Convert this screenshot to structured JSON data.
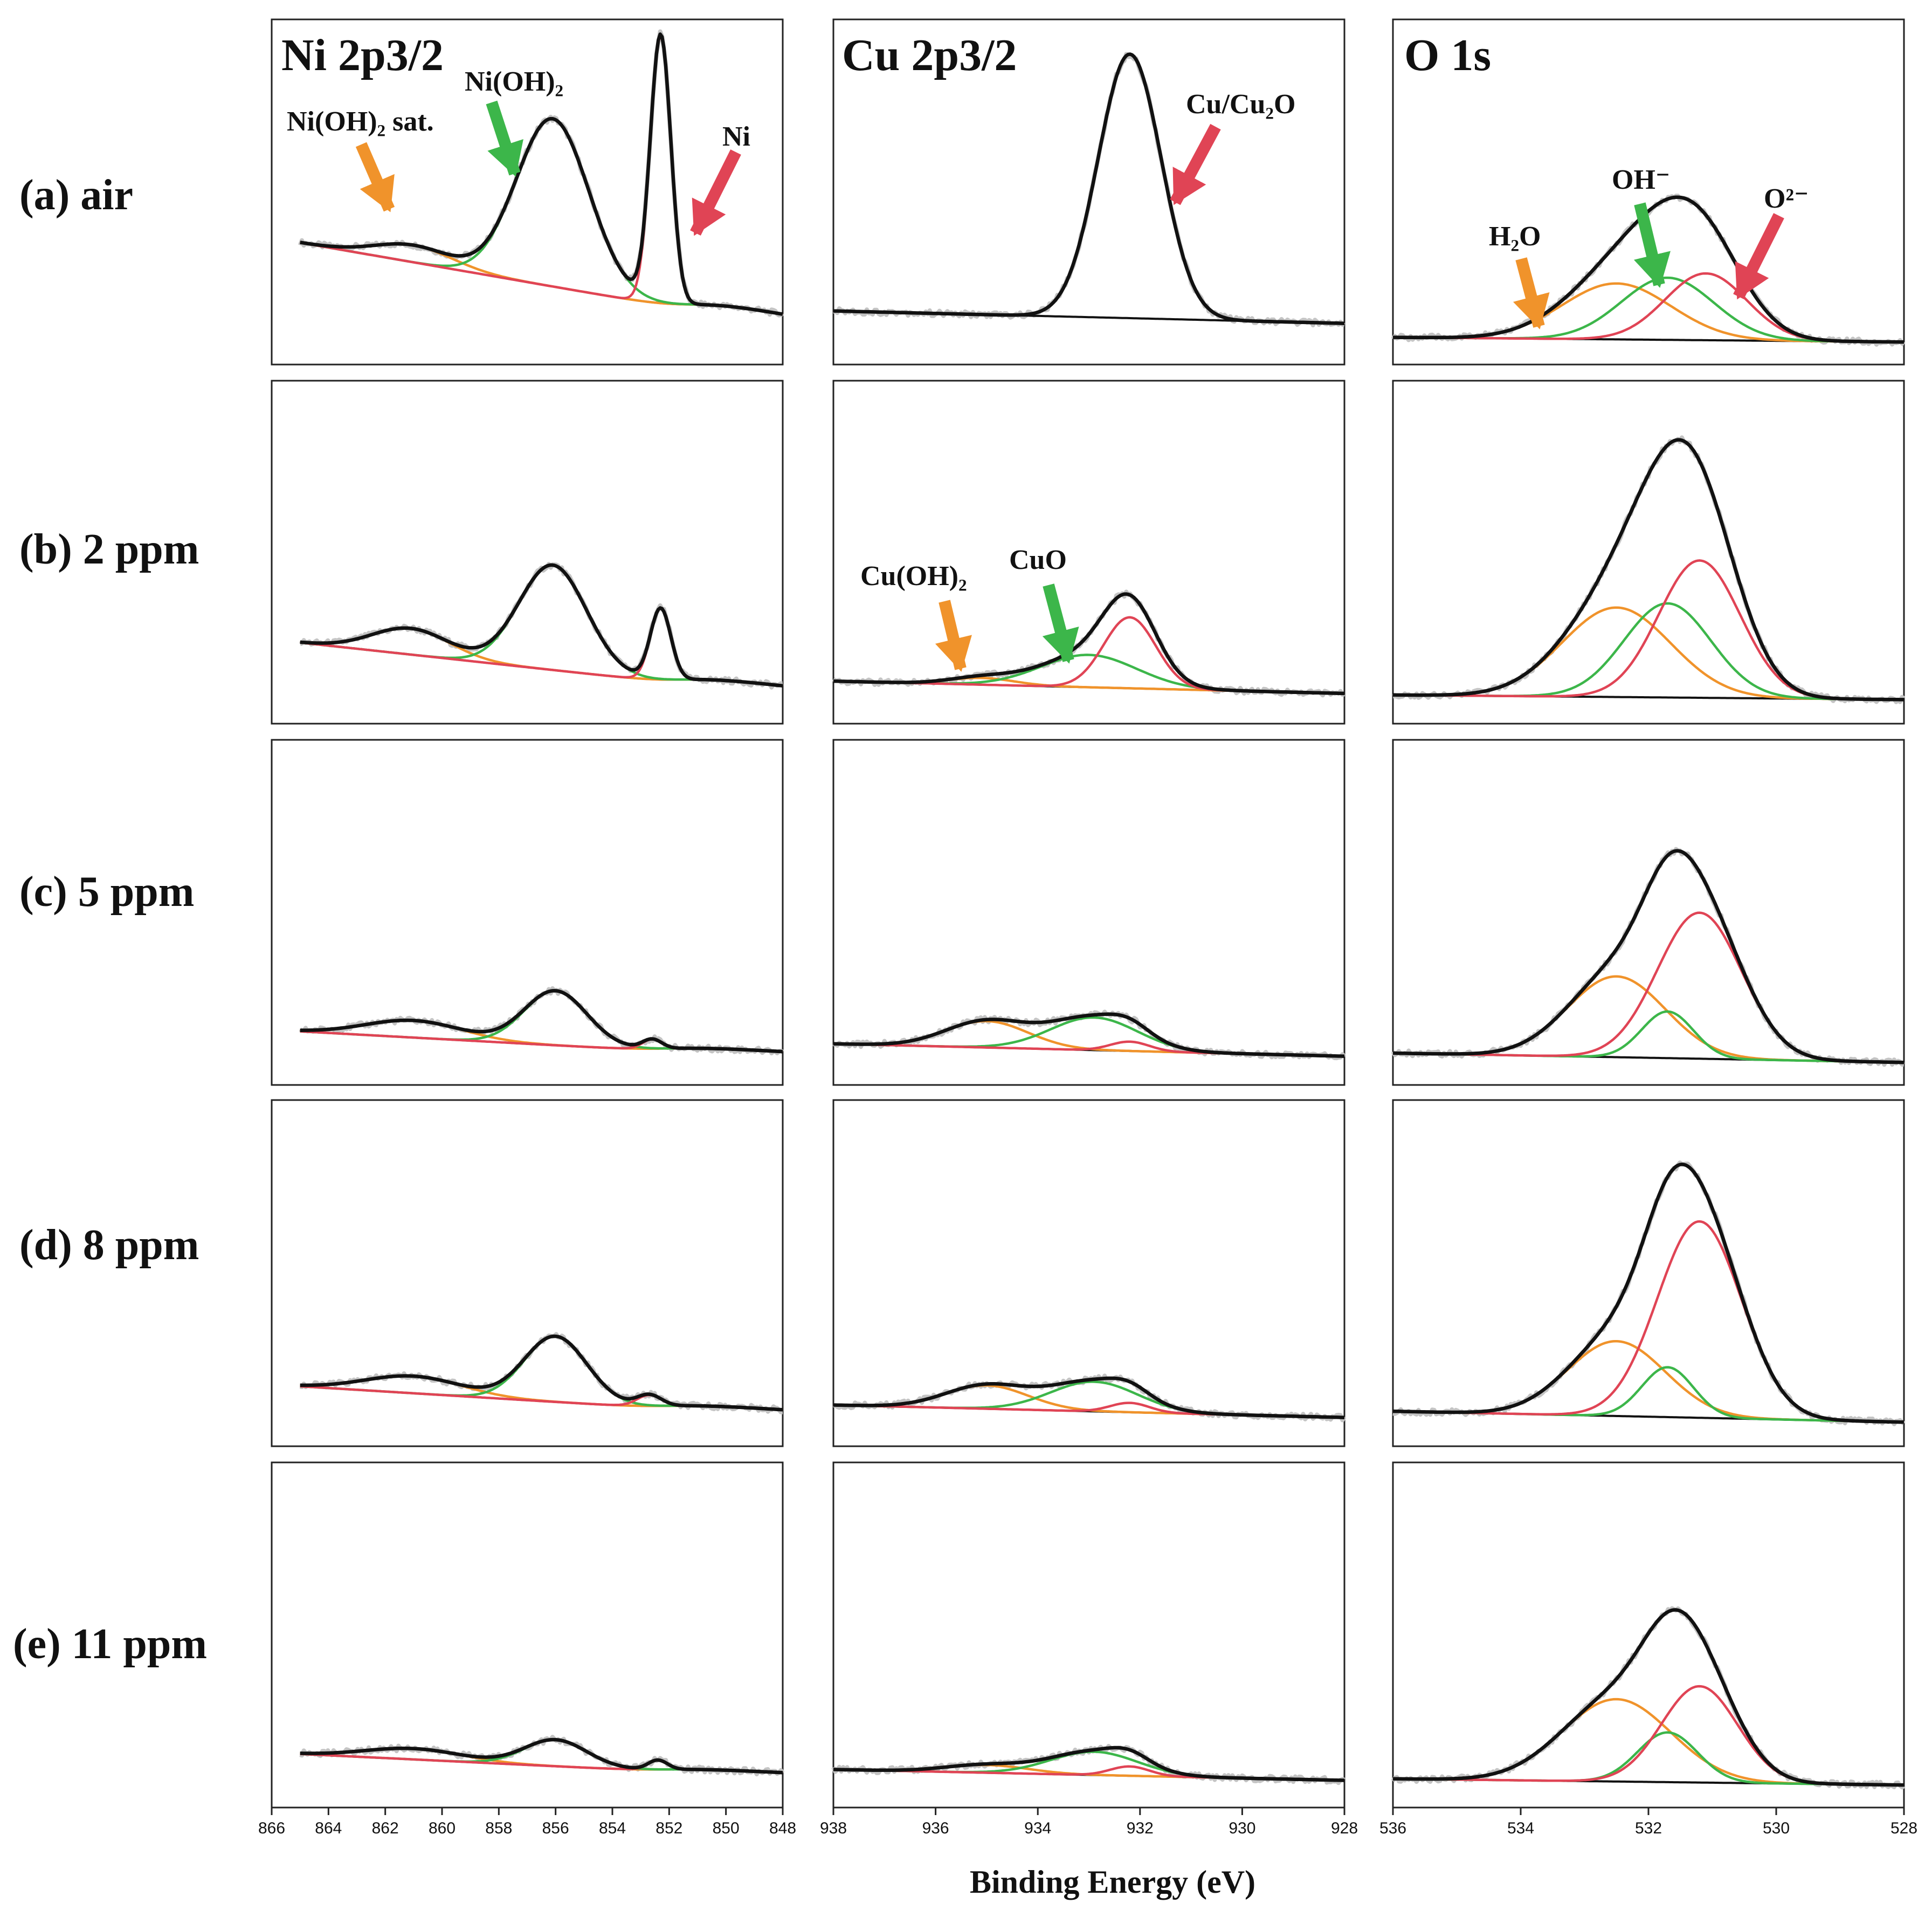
{
  "figure": {
    "xlabel": "Binding Energy (eV)",
    "rows": [
      "(a) air",
      "(b) 2 ppm",
      "(c) 5 ppm",
      "(d) 8 ppm",
      "(e) 11 ppm"
    ],
    "columns": [
      "Ni 2p3/2",
      "Cu 2p3/2",
      "O 1s"
    ]
  },
  "colors": {
    "raw_data": "#c4c4c4",
    "envelope": "#111111",
    "background": "#111111",
    "red": "#e04455",
    "green": "#3cb64a",
    "orange": "#f0932b"
  },
  "annotations": {
    "ni_sat": "Ni(OH)₂ sat.",
    "ni_oh": "Ni(OH)₂",
    "ni_metal": "Ni",
    "cu_cu2o": "Cu/Cu₂O",
    "cu_oh2": "Cu(OH)₂",
    "cu_cuo": "CuO",
    "o_h2o": "H₂O",
    "o_oh": "OH⁻",
    "o_o2": "O²⁻"
  },
  "chart_data": [
    {
      "type": "line",
      "title": "Ni 2p3/2",
      "xlabel": "Binding Energy (eV)",
      "ylabel": "",
      "xlim": [
        866,
        848
      ],
      "xticks": [
        866,
        864,
        862,
        860,
        858,
        856,
        854,
        852,
        850,
        848
      ],
      "x_start": 865,
      "x_end": 848,
      "y_max": 10,
      "peak_colors": [
        "orange",
        "green",
        "red"
      ],
      "rows": [
        {
          "label": "(a) air",
          "bg_start": 3.3,
          "bg_end": 0.6,
          "step_center": 851.2,
          "step_height": 0.4,
          "step_width": 0.7,
          "peaks": [
            {
              "center": 861.0,
              "height": 0.55,
              "fwhm": 3.2
            },
            {
              "center": 856.1,
              "height": 5.4,
              "fwhm": 3.0
            },
            {
              "center": 852.3,
              "height": 8.6,
              "fwhm": 0.85
            }
          ]
        },
        {
          "label": "(b) 2 ppm",
          "bg_start": 2.0,
          "bg_end": 0.3,
          "step_center": 851.5,
          "step_height": 0.3,
          "step_width": 0.7,
          "peaks": [
            {
              "center": 861.1,
              "height": 0.85,
              "fwhm": 3.2
            },
            {
              "center": 856.1,
              "height": 3.4,
              "fwhm": 2.8
            },
            {
              "center": 852.3,
              "height": 2.3,
              "fwhm": 0.85
            }
          ]
        },
        {
          "label": "(c) 5 ppm",
          "bg_start": 1.1,
          "bg_end": 0.25,
          "step_center": 852.0,
          "step_height": 0.2,
          "step_width": 0.8,
          "peaks": [
            {
              "center": 861.0,
              "height": 0.55,
              "fwhm": 4.0
            },
            {
              "center": 856.0,
              "height": 1.75,
              "fwhm": 2.6
            },
            {
              "center": 852.6,
              "height": 0.3,
              "fwhm": 0.8
            }
          ]
        },
        {
          "label": "(d) 8 ppm",
          "bg_start": 1.3,
          "bg_end": 0.35,
          "step_center": 852.0,
          "step_height": 0.2,
          "step_width": 0.8,
          "peaks": [
            {
              "center": 861.0,
              "height": 0.55,
              "fwhm": 4.0
            },
            {
              "center": 856.0,
              "height": 2.1,
              "fwhm": 2.6
            },
            {
              "center": 852.7,
              "height": 0.35,
              "fwhm": 1.0
            }
          ]
        },
        {
          "label": "(e) 11 ppm",
          "bg_start": 1.1,
          "bg_end": 0.35,
          "step_center": 852.0,
          "step_height": 0.15,
          "step_width": 0.8,
          "peaks": [
            {
              "center": 861.0,
              "height": 0.35,
              "fwhm": 4.0
            },
            {
              "center": 856.0,
              "height": 0.85,
              "fwhm": 2.6
            },
            {
              "center": 852.4,
              "height": 0.3,
              "fwhm": 0.8
            }
          ]
        }
      ]
    },
    {
      "type": "line",
      "title": "Cu 2p3/2",
      "xlabel": "Binding Energy (eV)",
      "ylabel": "",
      "xlim": [
        938,
        928
      ],
      "xticks": [
        938,
        936,
        934,
        932,
        930,
        928
      ],
      "x_start": 938,
      "x_end": 928,
      "y_max": 10,
      "peak_colors": [
        "orange",
        "green",
        "red"
      ],
      "rows": [
        {
          "label": "(a) air",
          "bg_start": 1.1,
          "bg_end": 0.7,
          "step_center": 932.0,
          "step_height": 0,
          "step_width": 0.8,
          "peaks": [
            {
              "center": 932.2,
              "height": 8.5,
              "fwhm": 1.45
            }
          ]
        },
        {
          "label": "(b) 2 ppm",
          "bg_start": 0.75,
          "bg_end": 0.35,
          "step_center": 932.0,
          "step_height": 0,
          "step_width": 0.8,
          "peaks": [
            {
              "center": 935.1,
              "height": 0.22,
              "fwhm": 1.5
            },
            {
              "center": 933.0,
              "height": 1.05,
              "fwhm": 2.2
            },
            {
              "center": 932.2,
              "height": 2.3,
              "fwhm": 1.2
            }
          ]
        },
        {
          "label": "(c) 5 ppm",
          "bg_start": 0.7,
          "bg_end": 0.3,
          "step_center": 932.0,
          "step_height": 0,
          "step_width": 0.8,
          "peaks": [
            {
              "center": 935.0,
              "height": 0.85,
              "fwhm": 1.9
            },
            {
              "center": 932.9,
              "height": 1.05,
              "fwhm": 2.0
            },
            {
              "center": 932.2,
              "height": 0.3,
              "fwhm": 0.9
            }
          ]
        },
        {
          "label": "(d) 8 ppm",
          "bg_start": 0.7,
          "bg_end": 0.3,
          "step_center": 932.0,
          "step_height": 0,
          "step_width": 0.8,
          "peaks": [
            {
              "center": 935.0,
              "height": 0.75,
              "fwhm": 1.9
            },
            {
              "center": 932.9,
              "height": 0.95,
              "fwhm": 2.0
            },
            {
              "center": 932.2,
              "height": 0.3,
              "fwhm": 0.9
            }
          ]
        },
        {
          "label": "(e) 11 ppm",
          "bg_start": 0.6,
          "bg_end": 0.25,
          "step_center": 932.0,
          "step_height": 0,
          "step_width": 0.8,
          "peaks": [
            {
              "center": 935.0,
              "height": 0.25,
              "fwhm": 1.9
            },
            {
              "center": 932.9,
              "height": 0.75,
              "fwhm": 2.0
            },
            {
              "center": 932.2,
              "height": 0.3,
              "fwhm": 0.9
            }
          ]
        }
      ]
    },
    {
      "type": "line",
      "title": "O 1s",
      "xlabel": "Binding Energy (eV)",
      "ylabel": "",
      "xlim": [
        536,
        528
      ],
      "xticks": [
        536,
        534,
        532,
        530,
        528
      ],
      "x_start": 536,
      "x_end": 528,
      "y_max": 10,
      "peak_colors": [
        "orange",
        "green",
        "red"
      ],
      "rows": [
        {
          "label": "(a) air",
          "bg_start": 0.25,
          "bg_end": 0.1,
          "step_center": 532.0,
          "step_height": 0,
          "step_width": 0.8,
          "peaks": [
            {
              "center": 532.5,
              "height": 1.8,
              "fwhm": 2.0
            },
            {
              "center": 531.7,
              "height": 2.0,
              "fwhm": 1.7
            },
            {
              "center": 531.1,
              "height": 2.15,
              "fwhm": 1.5
            }
          ]
        },
        {
          "label": "(b) 2 ppm",
          "bg_start": 0.3,
          "bg_end": 0.15,
          "step_center": 532.0,
          "step_height": 0,
          "step_width": 0.8,
          "peaks": [
            {
              "center": 532.5,
              "height": 2.9,
              "fwhm": 2.0
            },
            {
              "center": 531.7,
              "height": 3.05,
              "fwhm": 1.6
            },
            {
              "center": 531.2,
              "height": 4.45,
              "fwhm": 1.5
            }
          ]
        },
        {
          "label": "(c) 5 ppm",
          "bg_start": 0.4,
          "bg_end": 0.1,
          "step_center": 532.0,
          "step_height": 0,
          "step_width": 0.8,
          "peaks": [
            {
              "center": 532.5,
              "height": 2.6,
              "fwhm": 1.8
            },
            {
              "center": 531.7,
              "height": 1.5,
              "fwhm": 0.95
            },
            {
              "center": 531.2,
              "height": 4.7,
              "fwhm": 1.55
            }
          ]
        },
        {
          "label": "(d) 8 ppm",
          "bg_start": 0.5,
          "bg_end": 0.15,
          "step_center": 532.0,
          "step_height": 0,
          "step_width": 0.8,
          "peaks": [
            {
              "center": 532.5,
              "height": 2.4,
              "fwhm": 1.8
            },
            {
              "center": 531.7,
              "height": 1.6,
              "fwhm": 0.95
            },
            {
              "center": 531.2,
              "height": 6.3,
              "fwhm": 1.55
            }
          ]
        },
        {
          "label": "(e) 11 ppm",
          "bg_start": 0.3,
          "bg_end": 0.1,
          "step_center": 532.0,
          "step_height": 0,
          "step_width": 0.8,
          "peaks": [
            {
              "center": 532.5,
              "height": 2.65,
              "fwhm": 2.0
            },
            {
              "center": 531.7,
              "height": 1.6,
              "fwhm": 1.1
            },
            {
              "center": 531.2,
              "height": 3.1,
              "fwhm": 1.4
            }
          ]
        }
      ]
    }
  ]
}
